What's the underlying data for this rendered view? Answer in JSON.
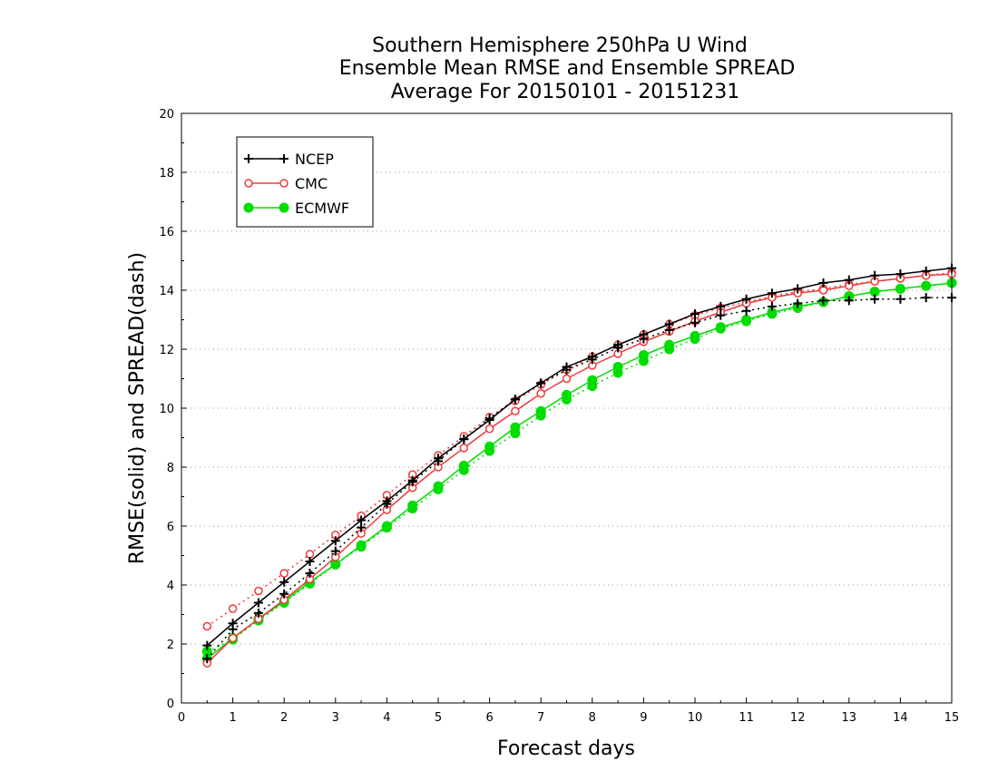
{
  "chart_data": {
    "type": "line",
    "title": [
      "Southern Hemisphere 250hPa U Wind",
      "Ensemble Mean RMSE and Ensemble SPREAD",
      "Average For 20150101 - 20151231"
    ],
    "xlabel": "Forecast days",
    "ylabel": "RMSE(solid) and SPREAD(dash)",
    "xlim": [
      0,
      15
    ],
    "ylim": [
      0,
      20
    ],
    "xticks": [
      0,
      1,
      2,
      3,
      4,
      5,
      6,
      7,
      8,
      9,
      10,
      11,
      12,
      13,
      14,
      15
    ],
    "yticks": [
      0,
      2,
      4,
      6,
      8,
      10,
      12,
      14,
      16,
      18,
      20
    ],
    "grid": "horizontal dotted",
    "legend_position": "top-left",
    "x": [
      0.5,
      1,
      1.5,
      2,
      2.5,
      3,
      3.5,
      4,
      4.5,
      5,
      5.5,
      6,
      6.5,
      7,
      7.5,
      8,
      8.5,
      9,
      9.5,
      10,
      10.5,
      11,
      11.5,
      12,
      12.5,
      13,
      13.5,
      14,
      14.5,
      15
    ],
    "series": [
      {
        "name": "NCEP",
        "color": "#000000",
        "marker": "plus",
        "rmse": [
          1.95,
          2.7,
          3.4,
          4.1,
          4.8,
          5.5,
          6.2,
          6.85,
          7.55,
          8.3,
          8.95,
          9.6,
          10.3,
          10.85,
          11.4,
          11.75,
          12.15,
          12.5,
          12.85,
          13.2,
          13.45,
          13.7,
          13.9,
          14.05,
          14.25,
          14.35,
          14.5,
          14.55,
          14.65,
          14.75
        ],
        "spread": [
          1.5,
          2.5,
          3.05,
          3.7,
          4.4,
          5.15,
          5.95,
          6.75,
          7.5,
          8.2,
          8.95,
          9.65,
          10.3,
          10.85,
          11.3,
          11.65,
          12.05,
          12.35,
          12.65,
          12.9,
          13.15,
          13.3,
          13.45,
          13.55,
          13.65,
          13.65,
          13.7,
          13.7,
          13.75,
          13.75
        ]
      },
      {
        "name": "CMC",
        "color": "#ee3b3b",
        "marker": "open-circle",
        "rmse": [
          1.35,
          2.2,
          2.85,
          3.5,
          4.2,
          4.95,
          5.75,
          6.55,
          7.3,
          8.0,
          8.65,
          9.3,
          9.9,
          10.5,
          11.0,
          11.45,
          11.85,
          12.25,
          12.6,
          12.95,
          13.25,
          13.55,
          13.75,
          13.9,
          14.0,
          14.15,
          14.3,
          14.4,
          14.5,
          14.55
        ],
        "spread": [
          2.6,
          3.2,
          3.8,
          4.4,
          5.05,
          5.7,
          6.35,
          7.05,
          7.75,
          8.4,
          9.05,
          9.7,
          10.25,
          10.8,
          11.3,
          11.75,
          12.15,
          12.5,
          12.85,
          13.15,
          13.4,
          13.6,
          13.8,
          13.95,
          14.05,
          14.2,
          14.3,
          14.4,
          14.5,
          14.6
        ]
      },
      {
        "name": "ECMWF",
        "color": "#00dd00",
        "marker": "filled-circle",
        "rmse": [
          1.5,
          2.2,
          2.85,
          3.45,
          4.1,
          4.7,
          5.35,
          6.0,
          6.7,
          7.35,
          8.05,
          8.7,
          9.35,
          9.9,
          10.45,
          10.95,
          11.4,
          11.8,
          12.15,
          12.45,
          12.75,
          13.0,
          13.25,
          13.45,
          13.6,
          13.8,
          13.95,
          14.05,
          14.15,
          14.25
        ],
        "spread": [
          1.75,
          2.15,
          2.8,
          3.4,
          4.05,
          4.7,
          5.3,
          5.95,
          6.6,
          7.25,
          7.9,
          8.55,
          9.15,
          9.75,
          10.3,
          10.75,
          11.2,
          11.6,
          12.0,
          12.35,
          12.7,
          12.95,
          13.2,
          13.4,
          13.6,
          13.8,
          13.95,
          14.05,
          14.15,
          14.25
        ]
      }
    ]
  }
}
